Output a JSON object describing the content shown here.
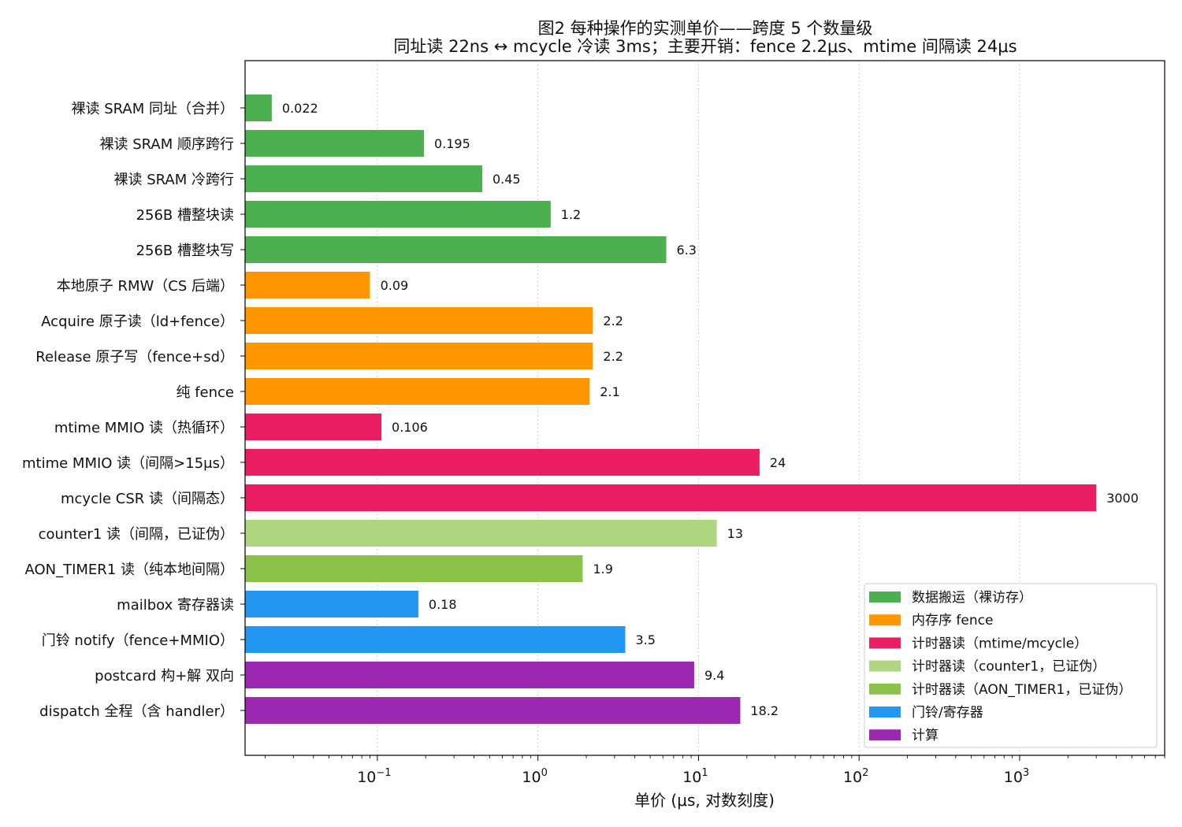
{
  "chart_data": {
    "type": "bar",
    "orientation": "horizontal",
    "title": "图2 每种操作的实测单价——跨度 5 个数量级",
    "subtitle": "同址读 22ns ↔ mcycle 冷读 3ms；主要开销：fence 2.2μs、mtime 间隔读 24μs",
    "xlabel": "单价 (μs, 对数刻度)",
    "ylabel": "",
    "x_scale": "log",
    "xlim": [
      0.015,
      8000
    ],
    "x_ticks": [
      {
        "base": "10",
        "exp": "−1",
        "value": 0.1
      },
      {
        "base": "10",
        "exp": "0",
        "value": 1
      },
      {
        "base": "10",
        "exp": "1",
        "value": 10
      },
      {
        "base": "10",
        "exp": "2",
        "value": 100
      },
      {
        "base": "10",
        "exp": "3",
        "value": 1000
      }
    ],
    "grid": "vertical dotted",
    "legend_position": "lower-right",
    "categories": [
      "裸读 SRAM 同址（合并）",
      "裸读 SRAM 顺序跨行",
      "裸读 SRAM 冷跨行",
      "256B 槽整块读",
      "256B 槽整块写",
      "本地原子 RMW（CS 后端）",
      "Acquire 原子读（ld+fence）",
      "Release 原子写（fence+sd）",
      "纯 fence",
      "mtime MMIO 读（热循环）",
      "mtime MMIO 读（间隔>15μs）",
      "mcycle CSR 读（间隔态）",
      "counter1 读（间隔，已证伪）",
      "AON_TIMER1 读（纯本地间隔）",
      "mailbox 寄存器读",
      "门铃 notify（fence+MMIO）",
      "postcard 构+解 双向",
      "dispatch 全程（含 handler）"
    ],
    "values": [
      0.022,
      0.195,
      0.45,
      1.2,
      6.3,
      0.09,
      2.2,
      2.2,
      2.1,
      0.106,
      24,
      3000,
      13,
      1.9,
      0.18,
      3.5,
      9.4,
      18.2
    ],
    "value_labels": [
      "0.022",
      "0.195",
      "0.45",
      "1.2",
      "6.3",
      "0.09",
      "2.2",
      "2.2",
      "2.1",
      "0.106",
      "24",
      "3000",
      "13",
      "1.9",
      "0.18",
      "3.5",
      "9.4",
      "18.2"
    ],
    "groups": [
      0,
      0,
      0,
      0,
      0,
      1,
      1,
      1,
      1,
      2,
      2,
      2,
      3,
      4,
      5,
      5,
      6,
      6
    ],
    "series": [
      {
        "name": "数据搬运（裸访存）",
        "color": "#4caf50"
      },
      {
        "name": "内存序 fence",
        "color": "#ff9800"
      },
      {
        "name": "计时器读（mtime/mcycle）",
        "color": "#e91e63"
      },
      {
        "name": "计时器读（counter1，已证伪）",
        "color": "#aed581"
      },
      {
        "name": "计时器读（AON_TIMER1，已证伪）",
        "color": "#8bc34a"
      },
      {
        "name": "门铃/寄存器",
        "color": "#2196f3"
      },
      {
        "name": "计算",
        "color": "#9c27b0"
      }
    ]
  }
}
